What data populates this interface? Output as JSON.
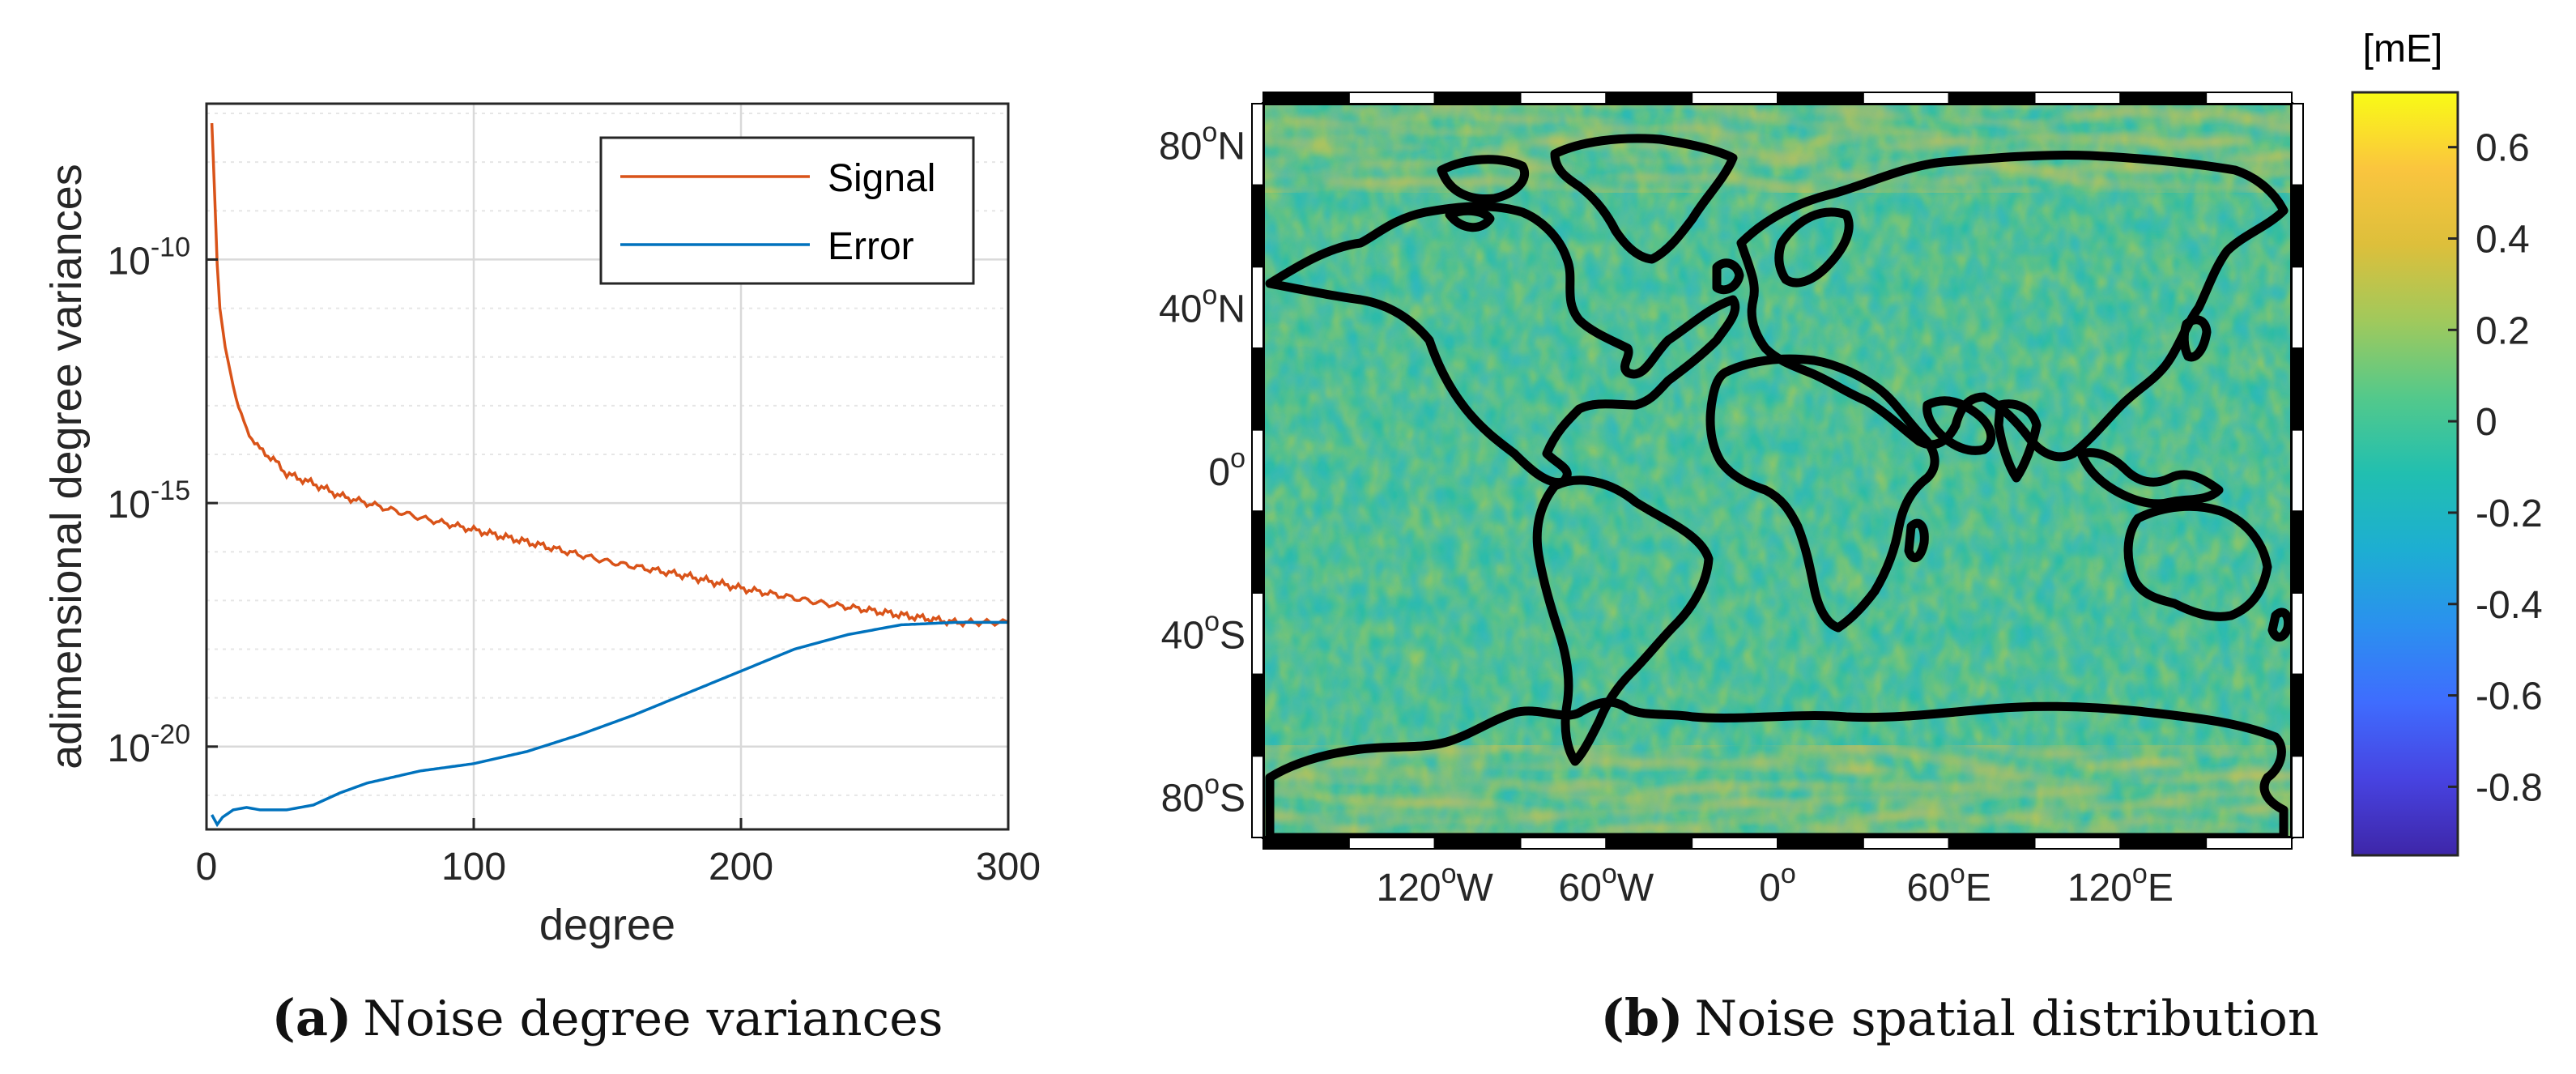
{
  "chart_data": [
    {
      "type": "line",
      "panel_label": "a",
      "caption": "Noise degree variances",
      "xlabel": "degree",
      "ylabel": "adimensional degree variances",
      "xlim": [
        0,
        300
      ],
      "xticks": [
        0,
        100,
        200,
        300
      ],
      "ylim_log10": [
        -21.7,
        -6.8
      ],
      "yscale": "log",
      "yticks": [
        {
          "exp": -10,
          "base": "10",
          "sup": "-10"
        },
        {
          "exp": -15,
          "base": "10",
          "sup": "-15"
        },
        {
          "exp": -20,
          "base": "10",
          "sup": "-20"
        }
      ],
      "grid": true,
      "legend_placement": "top-right",
      "series": [
        {
          "name": "Signal",
          "color": "#d95319",
          "x": [
            2,
            3,
            4,
            5,
            7,
            10,
            13,
            15,
            20,
            25,
            30,
            40,
            50,
            60,
            80,
            100,
            120,
            150,
            180,
            200,
            230,
            260,
            280,
            300
          ],
          "log10_y": [
            -7.2,
            -8.6,
            -10.1,
            -11.0,
            -11.8,
            -12.6,
            -13.2,
            -13.5,
            -13.9,
            -14.1,
            -14.4,
            -14.6,
            -14.85,
            -15.0,
            -15.3,
            -15.55,
            -15.8,
            -16.2,
            -16.5,
            -16.75,
            -17.05,
            -17.3,
            -17.45,
            -17.45
          ]
        },
        {
          "name": "Error",
          "color": "#0072bd",
          "x": [
            2,
            4,
            6,
            10,
            15,
            20,
            30,
            40,
            50,
            60,
            80,
            100,
            120,
            140,
            160,
            180,
            200,
            220,
            240,
            260,
            280,
            300
          ],
          "log10_y": [
            -21.4,
            -21.6,
            -21.45,
            -21.3,
            -21.25,
            -21.3,
            -21.3,
            -21.2,
            -20.95,
            -20.75,
            -20.5,
            -20.35,
            -20.1,
            -19.75,
            -19.35,
            -18.9,
            -18.45,
            -18.0,
            -17.7,
            -17.5,
            -17.45,
            -17.45
          ]
        }
      ]
    },
    {
      "type": "heatmap",
      "panel_label": "b",
      "caption": "Noise spatial distribution",
      "colorbar_title": "[mE]",
      "colorbar_range": [
        -0.95,
        0.72
      ],
      "colorbar_ticks": [
        "0.6",
        "0.4",
        "0.2",
        "0",
        "-0.2",
        "-0.4",
        "-0.6",
        "-0.8"
      ],
      "colorbar_tick_values": [
        0.6,
        0.4,
        0.2,
        0,
        -0.2,
        -0.4,
        -0.6,
        -0.8
      ],
      "colormap": [
        "#3e26a8",
        "#4743e1",
        "#3f6cfe",
        "#2b90ef",
        "#1daed2",
        "#21bfb0",
        "#53c98b",
        "#a0c95c",
        "#ddbf3b",
        "#fac53e",
        "#f9fb15"
      ],
      "lat_ticks": [
        {
          "deg": 80,
          "num": "80",
          "hemi": "N"
        },
        {
          "deg": 40,
          "num": "40",
          "hemi": "N"
        },
        {
          "deg": 0,
          "num": "0",
          "hemi": ""
        },
        {
          "deg": -40,
          "num": "40",
          "hemi": "S"
        },
        {
          "deg": -80,
          "num": "80",
          "hemi": "S"
        }
      ],
      "lon_ticks": [
        {
          "deg": -120,
          "num": "120",
          "hemi": "W"
        },
        {
          "deg": -60,
          "num": "60",
          "hemi": "W"
        },
        {
          "deg": 0,
          "num": "0",
          "hemi": ""
        },
        {
          "deg": 60,
          "num": "60",
          "hemi": "E"
        },
        {
          "deg": 120,
          "num": "120",
          "hemi": "E"
        }
      ]
    }
  ]
}
